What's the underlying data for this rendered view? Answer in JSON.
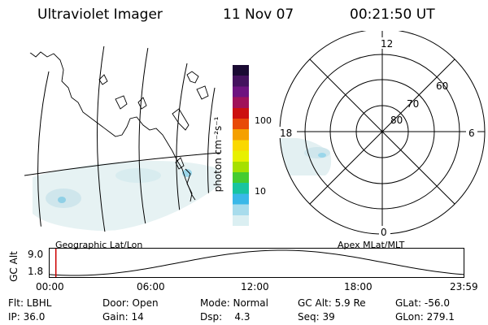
{
  "header": {
    "title": "Ultraviolet Imager",
    "date": "11 Nov 07",
    "time": "00:21:50 UT"
  },
  "colorbar": {
    "unit_label": "photon cm⁻²s⁻¹",
    "ticks": [
      "100",
      "10"
    ],
    "colors": [
      "#1a0a33",
      "#44125e",
      "#6e1380",
      "#a0125a",
      "#cc1010",
      "#e84a08",
      "#f5a000",
      "#fad800",
      "#e8f000",
      "#a6e000",
      "#44cc30",
      "#18c4a0",
      "#3ab8e8",
      "#a8dcec",
      "#dbeff2"
    ]
  },
  "polar": {
    "mlt_labels": {
      "top": "12",
      "left": "18",
      "right": "6",
      "bottom": "0"
    },
    "lat_labels": [
      "80",
      "70",
      "60"
    ]
  },
  "map_labels": {
    "left": "Geographic Lat/Lon",
    "right": "Apex MLat/MLT"
  },
  "altitude_plot": {
    "ylabel": "GC Alt",
    "yticks": [
      "9.0",
      "1.8"
    ],
    "xticks": [
      "00:00",
      "06:00",
      "12:00",
      "18:00",
      "23:59"
    ],
    "marker_time": "00:21:50",
    "marker_color": "#cc0000",
    "ylim": [
      1.8,
      9.0
    ]
  },
  "status": {
    "flt": "Flt: LBHL",
    "door": "Door: Open",
    "mode": "Mode: Normal",
    "gc_alt": "GC Alt: 5.9 Re",
    "glat": "GLat: -56.0",
    "ip": "IP: 36.0",
    "gain": "Gain: 14",
    "dsp": "Dsp:    4.3",
    "seq": "Seq: 39",
    "glon": "GLon: 279.1"
  }
}
